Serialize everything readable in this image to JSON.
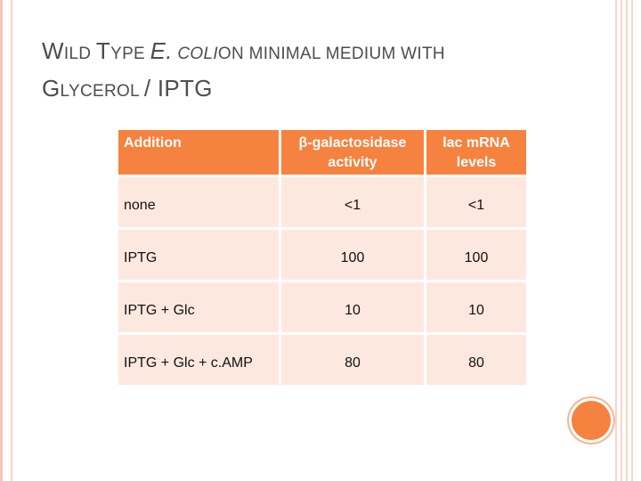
{
  "slide": {
    "title": {
      "w": "W",
      "ild": "ILD",
      "t": "T",
      "ype": "YPE",
      "e_coli_e": "E.",
      "coli": "COLI",
      "rest": "ON MINIMAL MEDIUM WITH",
      "g": "G",
      "lycerol": "LYCEROL",
      "iptg": "/ IPTG"
    },
    "table": {
      "headers": [
        "Addition",
        "β-galactosidase activity",
        "lac mRNA levels"
      ],
      "rows": [
        [
          "none",
          "<1",
          "<1"
        ],
        [
          "IPTG",
          "100",
          "100"
        ],
        [
          "IPTG + Glc",
          "10",
          "10"
        ],
        [
          "IPTG + Glc + c.AMP",
          "80",
          "80"
        ]
      ]
    }
  },
  "colors": {
    "accent": "#f6823f",
    "cell_bg": "#fde8e0",
    "title_text": "#4d4d4d"
  }
}
